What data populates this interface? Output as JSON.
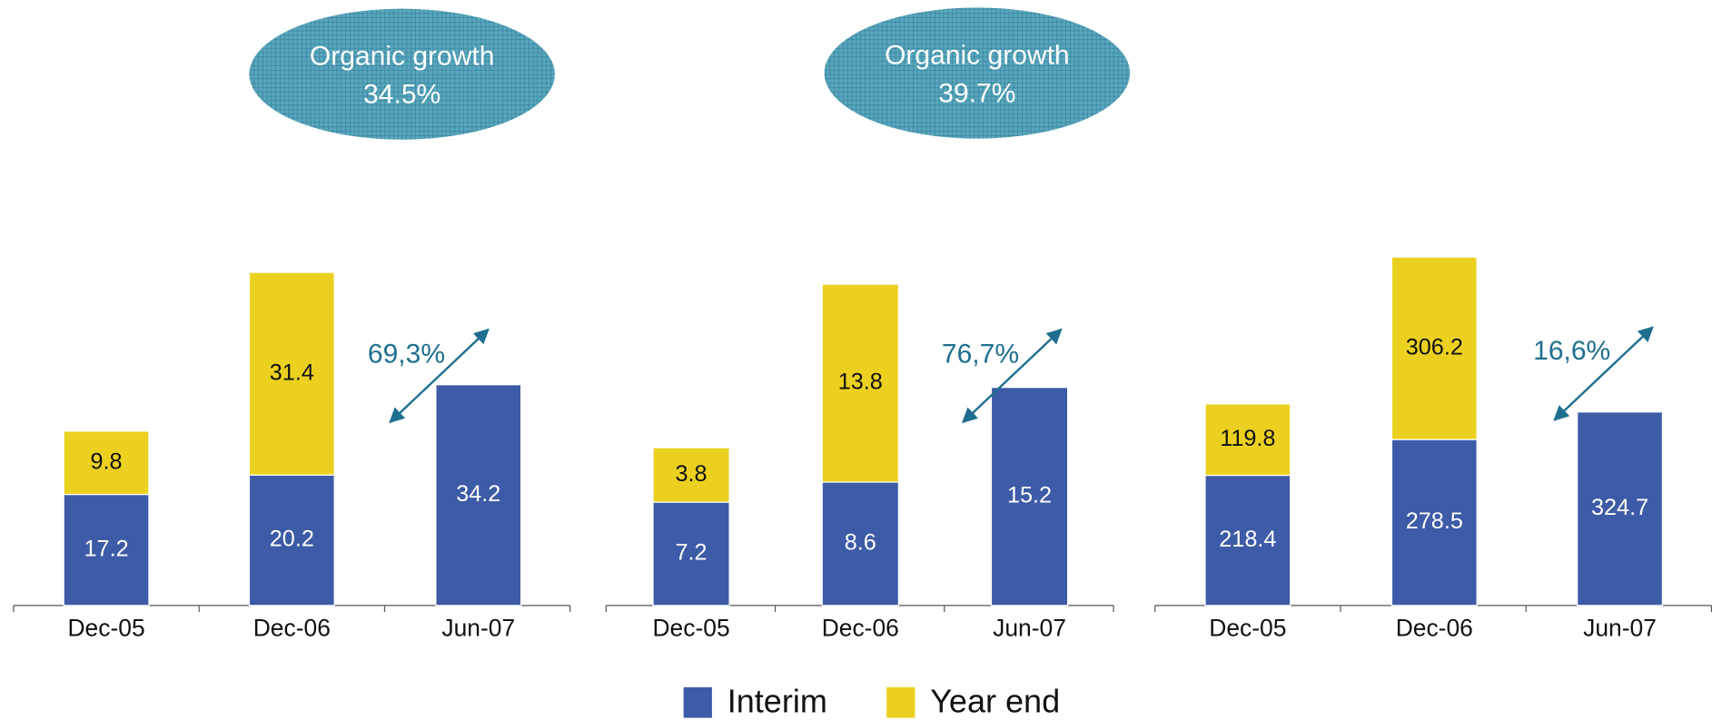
{
  "chart_data": [
    {
      "type": "bar",
      "stacked": true,
      "categories": [
        "Dec-05",
        "Dec-06",
        "Jun-07"
      ],
      "series": [
        {
          "name": "Interim",
          "color": "#3d5ba6",
          "values": [
            17.2,
            20.2,
            34.2
          ]
        },
        {
          "name": "Year end",
          "color": "#ecd01f",
          "values": [
            9.8,
            31.4,
            null
          ]
        }
      ],
      "ylim": [
        0,
        60
      ],
      "growth_label": "69,3%",
      "callout": {
        "title": "Organic growth",
        "value": "34.5%"
      }
    },
    {
      "type": "bar",
      "stacked": true,
      "categories": [
        "Dec-05",
        "Dec-06",
        "Jun-07"
      ],
      "series": [
        {
          "name": "Interim",
          "color": "#3d5ba6",
          "values": [
            7.2,
            8.6,
            15.2
          ]
        },
        {
          "name": "Year end",
          "color": "#ecd01f",
          "values": [
            3.8,
            13.8,
            null
          ]
        }
      ],
      "ylim": [
        0,
        27
      ],
      "growth_label": "76,7%",
      "callout": {
        "title": "Organic growth",
        "value": "39.7%"
      }
    },
    {
      "type": "bar",
      "stacked": true,
      "categories": [
        "Dec-05",
        "Dec-06",
        "Jun-07"
      ],
      "series": [
        {
          "name": "Interim",
          "color": "#3d5ba6",
          "values": [
            218.4,
            278.5,
            324.7
          ]
        },
        {
          "name": "Year end",
          "color": "#ecd01f",
          "values": [
            119.8,
            306.2,
            null
          ]
        }
      ],
      "ylim": [
        0,
        650
      ],
      "growth_label": "16,6%"
    }
  ]
}
